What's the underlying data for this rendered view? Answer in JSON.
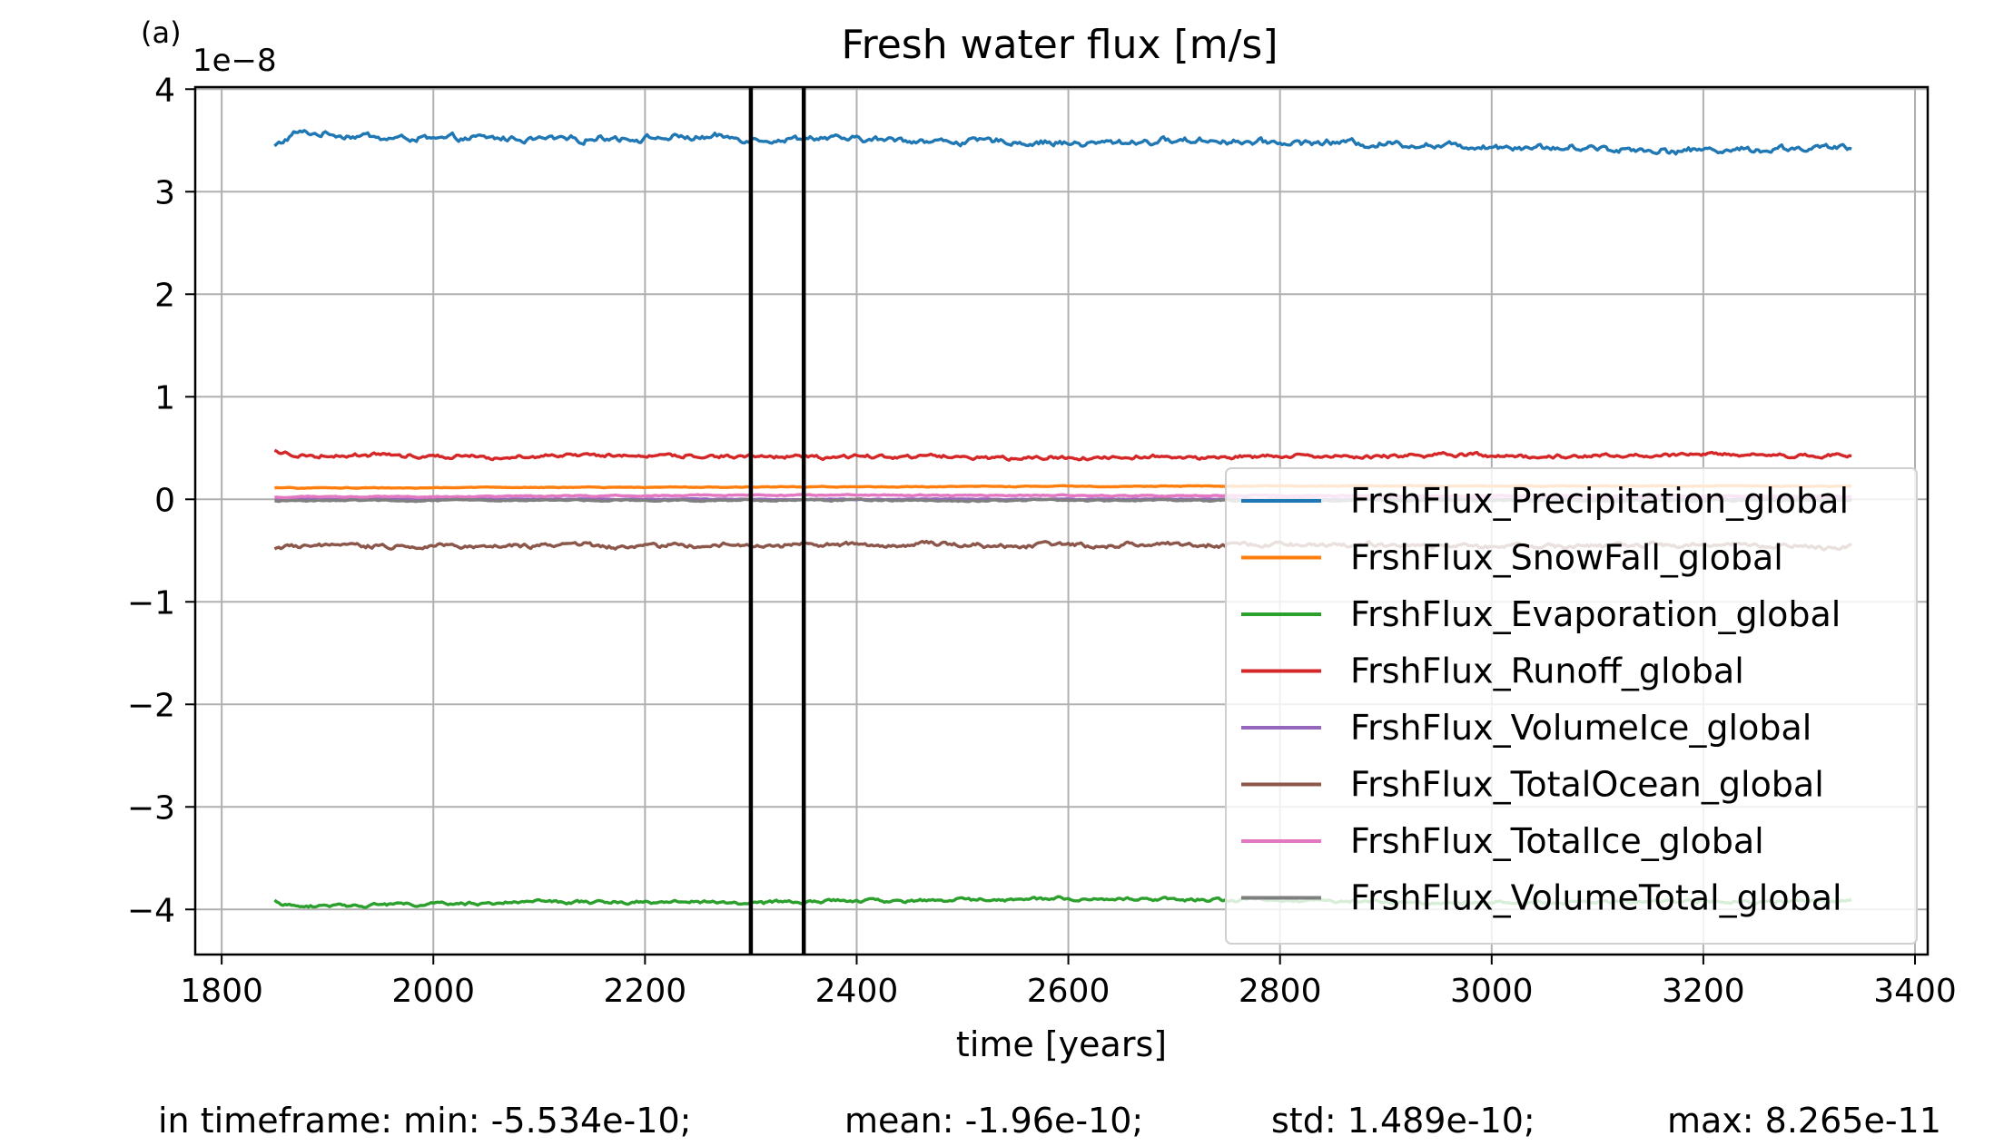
{
  "panel_label": "(a)",
  "footer": {
    "min": "in timeframe: min: -5.534e-10;",
    "mean": "mean: -1.96e-10;",
    "std": "std: 1.489e-10;",
    "max": "max: 8.265e-11"
  },
  "chart_data": {
    "type": "line",
    "title": "Fresh water flux [m/s]",
    "xlabel": "time [years]",
    "ylabel": "",
    "y_scale_label": "1e−8",
    "xlim": [
      1775,
      3412
    ],
    "ylim": [
      -4.44,
      4.02
    ],
    "xticks": [
      1800,
      2000,
      2200,
      2400,
      2600,
      2800,
      3000,
      3200,
      3400
    ],
    "yticks": [
      -4,
      -3,
      -2,
      -1,
      0,
      1,
      2,
      3,
      4
    ],
    "ytick_labels": [
      "−4",
      "−3",
      "−2",
      "−1",
      "0",
      "1",
      "2",
      "3",
      "4"
    ],
    "grid": true,
    "legend_position": "lower-right",
    "vertical_lines": [
      2300,
      2350
    ],
    "x_start": 1850,
    "x_end": 3340,
    "series": [
      {
        "name": "FrshFlux_Precipitation_global",
        "color": "#1f77b4",
        "x": [
          1850,
          1870,
          1900,
          1950,
          2000,
          2100,
          2200,
          2300,
          2400,
          2500,
          2600,
          2700,
          2800,
          2900,
          3000,
          3100,
          3200,
          3340
        ],
        "y": [
          3.44,
          3.58,
          3.56,
          3.53,
          3.51,
          3.52,
          3.53,
          3.51,
          3.51,
          3.49,
          3.47,
          3.5,
          3.49,
          3.47,
          3.45,
          3.42,
          3.41,
          3.42
        ],
        "noise": 0.035
      },
      {
        "name": "FrshFlux_SnowFall_global",
        "color": "#ff7f0e",
        "x": [
          1850,
          2300,
          2800,
          3340
        ],
        "y": [
          0.11,
          0.12,
          0.13,
          0.13
        ],
        "noise": 0.004
      },
      {
        "name": "FrshFlux_Evaporation_global",
        "color": "#2ca02c",
        "x": [
          1850,
          1870,
          1950,
          2100,
          2300,
          2400,
          2600,
          2800,
          3000,
          3200,
          3340
        ],
        "y": [
          -3.92,
          -3.98,
          -3.95,
          -3.93,
          -3.93,
          -3.92,
          -3.89,
          -3.91,
          -3.93,
          -3.92,
          -3.92
        ],
        "noise": 0.018
      },
      {
        "name": "FrshFlux_Runoff_global",
        "color": "#d62728",
        "x": [
          1850,
          1870,
          2000,
          2300,
          2600,
          2900,
          3340
        ],
        "y": [
          0.47,
          0.43,
          0.43,
          0.42,
          0.41,
          0.42,
          0.43
        ],
        "noise": 0.022
      },
      {
        "name": "FrshFlux_VolumeIce_global",
        "color": "#9467bd",
        "x": [
          1850,
          3340
        ],
        "y": [
          0.0,
          0.0
        ],
        "noise": 0.004
      },
      {
        "name": "FrshFlux_TotalOcean_global",
        "color": "#8c564b",
        "x": [
          1850,
          2000,
          2300,
          2600,
          2900,
          3340
        ],
        "y": [
          -0.47,
          -0.45,
          -0.45,
          -0.44,
          -0.45,
          -0.46
        ],
        "noise": 0.025
      },
      {
        "name": "FrshFlux_TotalIce_global",
        "color": "#e377c2",
        "x": [
          1850,
          2300,
          3340
        ],
        "y": [
          0.02,
          0.04,
          0.03
        ],
        "noise": 0.006
      },
      {
        "name": "FrshFlux_VolumeTotal_global",
        "color": "#7f7f7f",
        "x": [
          1850,
          2300,
          3340
        ],
        "y": [
          -0.01,
          -0.01,
          -0.01
        ],
        "noise": 0.008
      }
    ]
  }
}
